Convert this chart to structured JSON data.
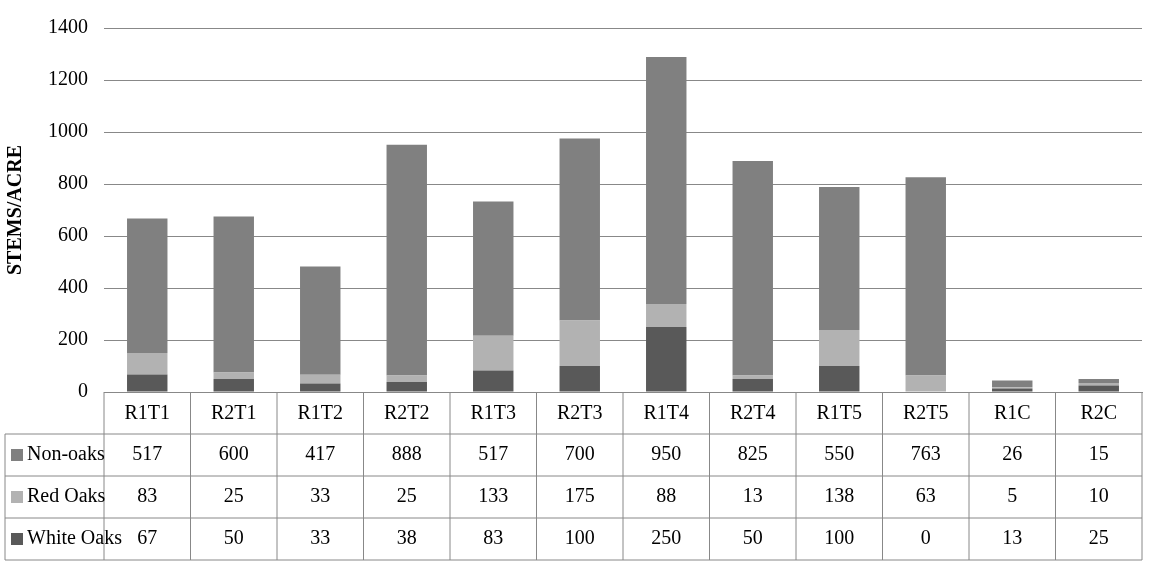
{
  "chart_data": {
    "type": "bar",
    "stacked": true,
    "ylabel": "STEMS/ACRE",
    "categories": [
      "R1T1",
      "R2T1",
      "R1T2",
      "R2T2",
      "R1T3",
      "R2T3",
      "R1T4",
      "R2T4",
      "R1T5",
      "R2T5",
      "R1C",
      "R2C"
    ],
    "series": [
      {
        "name": "White Oaks",
        "color": "#595959",
        "values": [
          67,
          50,
          33,
          38,
          83,
          100,
          250,
          50,
          100,
          0,
          13,
          25
        ]
      },
      {
        "name": "Red Oaks",
        "color": "#b2b2b2",
        "values": [
          83,
          25,
          33,
          25,
          133,
          175,
          88,
          13,
          138,
          63,
          5,
          10
        ]
      },
      {
        "name": "Non-oaks",
        "color": "#808080",
        "values": [
          517,
          600,
          417,
          888,
          517,
          700,
          950,
          825,
          550,
          763,
          26,
          15
        ]
      }
    ],
    "ylim": [
      0,
      1400
    ],
    "yticks": [
      0,
      200,
      400,
      600,
      800,
      1000,
      1200,
      1400
    ],
    "grid": "y",
    "data_labels": true,
    "legend": "bottom"
  }
}
